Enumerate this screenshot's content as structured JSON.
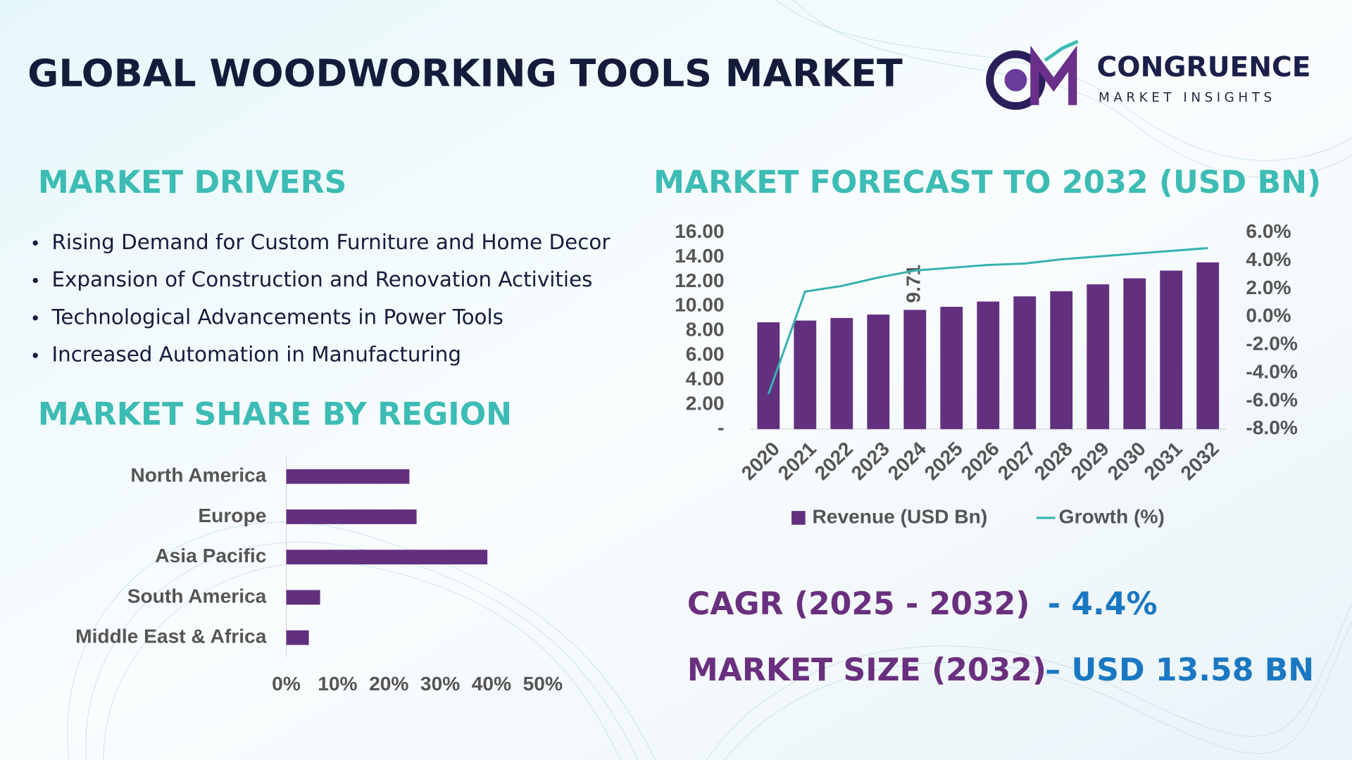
{
  "header": {
    "title": "GLOBAL WOODWORKING TOOLS MARKET"
  },
  "logo": {
    "name": "CONGRUENCE",
    "tagline": "MARKET INSIGHTS"
  },
  "drivers": {
    "title": "MARKET DRIVERS",
    "items": [
      "Rising Demand for Custom Furniture and Home Decor",
      "Expansion of Construction and Renovation Activities",
      "Technological Advancements in Power Tools",
      "Increased Automation in Manufacturing"
    ]
  },
  "chart_data": [
    {
      "type": "combo",
      "title": "MARKET FORECAST TO 2032 (USD BN)",
      "categories": [
        "2020",
        "2021",
        "2022",
        "2023",
        "2024",
        "2025",
        "2026",
        "2027",
        "2028",
        "2029",
        "2030",
        "2031",
        "2032"
      ],
      "series": [
        {
          "name": "Revenue (USD Bn)",
          "type": "bar",
          "color": "#62307e",
          "values": [
            8.7,
            8.84,
            9.05,
            9.33,
            9.71,
            9.96,
            10.39,
            10.81,
            11.23,
            11.79,
            12.28,
            12.91,
            13.58
          ],
          "value_labels": [
            null,
            null,
            null,
            null,
            "9.71",
            null,
            null,
            null,
            null,
            null,
            null,
            null,
            null
          ]
        },
        {
          "name": "Growth (%)",
          "type": "line",
          "axis": "y2",
          "color": "#36b3b0",
          "values": [
            -5.5,
            1.8,
            2.2,
            2.8,
            3.3,
            3.5,
            3.7,
            3.8,
            4.1,
            4.3,
            4.5,
            4.7,
            4.9
          ]
        }
      ],
      "ylim": [
        0,
        16
      ],
      "yticks": [
        {
          "value": 0,
          "label": "-"
        },
        {
          "value": 2,
          "label": "2.00"
        },
        {
          "value": 4,
          "label": "4.00"
        },
        {
          "value": 6,
          "label": "6.00"
        },
        {
          "value": 8,
          "label": "8.00"
        },
        {
          "value": 10,
          "label": "10.00"
        },
        {
          "value": 12,
          "label": "12.00"
        },
        {
          "value": 14,
          "label": "14.00"
        },
        {
          "value": 16,
          "label": "16.00"
        }
      ],
      "y2lim": [
        -8,
        6
      ],
      "y2ticks": [
        {
          "value": -8,
          "label": "-8.0%"
        },
        {
          "value": -6,
          "label": "-6.0%"
        },
        {
          "value": -4,
          "label": "-4.0%"
        },
        {
          "value": -2,
          "label": "-2.0%"
        },
        {
          "value": 0,
          "label": "0.0%"
        },
        {
          "value": 2,
          "label": "2.0%"
        },
        {
          "value": 4,
          "label": "4.0%"
        },
        {
          "value": 6,
          "label": "6.0%"
        }
      ],
      "grid": false,
      "legend": "bottom"
    },
    {
      "type": "hbar",
      "title": "MARKET SHARE BY REGION",
      "color": "#62307e",
      "categories": [
        "North America",
        "Europe",
        "Asia Pacific",
        "South America",
        "Middle East & Africa"
      ],
      "values": [
        24.0,
        25.4,
        39.2,
        6.6,
        4.4
      ],
      "xlim": [
        0,
        50
      ],
      "xticks": [
        {
          "value": 0,
          "label": "0%"
        },
        {
          "value": 10,
          "label": "10%"
        },
        {
          "value": 20,
          "label": "20%"
        },
        {
          "value": 30,
          "label": "30%"
        },
        {
          "value": 40,
          "label": "40%"
        },
        {
          "value": 50,
          "label": "50%"
        }
      ],
      "grid": false
    }
  ],
  "stats": [
    {
      "label": "CAGR (2025 - 2032)",
      "value": "- 4.4%"
    },
    {
      "label": "MARKET SIZE (2032)",
      "value": "– USD 13.58 BN"
    }
  ]
}
